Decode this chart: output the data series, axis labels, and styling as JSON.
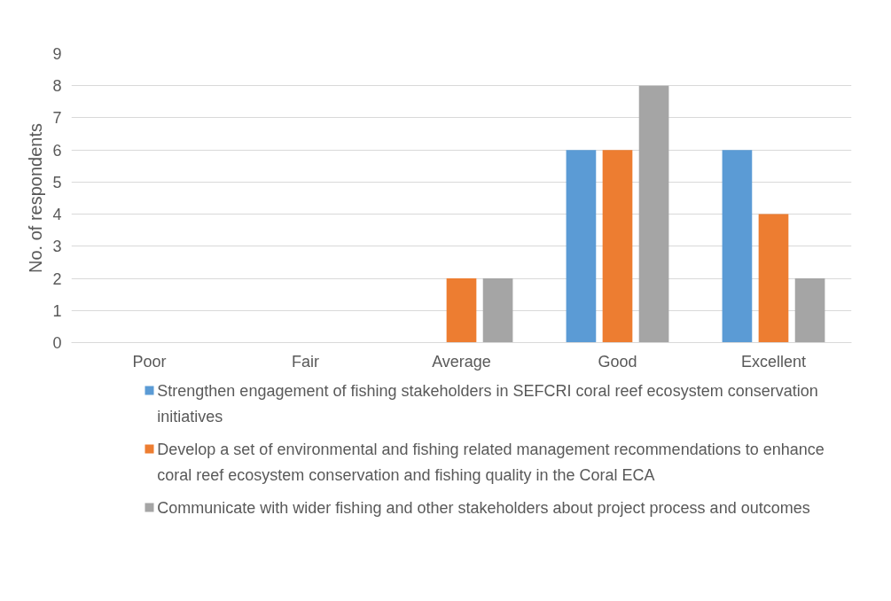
{
  "chart_data": {
    "type": "bar",
    "ylabel": "No. of respondents",
    "categories": [
      "Poor",
      "Fair",
      "Average",
      "Good",
      "Excellent"
    ],
    "series": [
      {
        "name": "Strengthen engagement of fishing stakeholders in SEFCRI coral reef ecosystem conservation initiatives",
        "color": "#5b9bd5",
        "values": [
          0,
          0,
          0,
          6,
          6
        ]
      },
      {
        "name": "Develop a set of environmental and fishing related management recommendations to enhance coral reef ecosystem conservation and fishing quality in the Coral ECA",
        "color": "#ed7d31",
        "values": [
          0,
          0,
          2,
          6,
          4
        ]
      },
      {
        "name": "Communicate with wider fishing and other stakeholders about project process and outcomes",
        "color": "#a5a5a5",
        "values": [
          0,
          0,
          2,
          8,
          2
        ]
      }
    ],
    "ylim": [
      0,
      9
    ],
    "yticks": [
      0,
      1,
      2,
      3,
      4,
      5,
      6,
      7,
      8,
      9
    ],
    "grid": "y",
    "legend": "bottom"
  }
}
